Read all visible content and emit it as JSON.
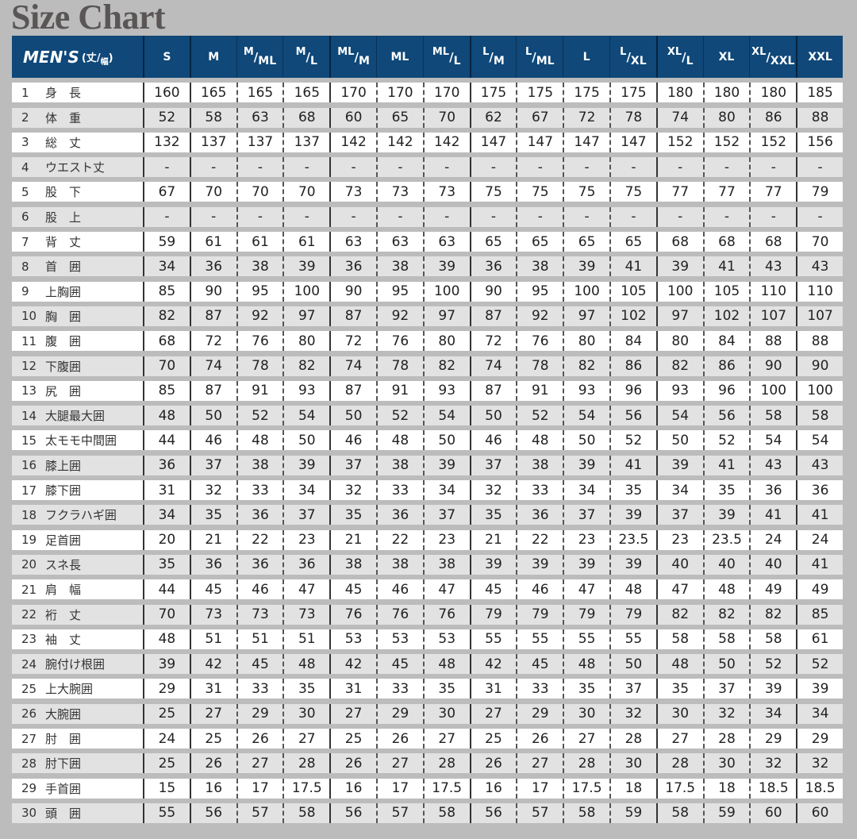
{
  "title": "Size Chart",
  "header": {
    "mens": "MEN'S",
    "unit_top": "丈",
    "unit_bottom": "幅",
    "sizes": [
      {
        "main": "S"
      },
      {
        "main": "M"
      },
      {
        "top": "M",
        "bottom": "ML"
      },
      {
        "top": "M",
        "bottom": "L"
      },
      {
        "top": "ML",
        "bottom": "M"
      },
      {
        "main": "ML"
      },
      {
        "top": "ML",
        "bottom": "L"
      },
      {
        "top": "L",
        "bottom": "M"
      },
      {
        "top": "L",
        "bottom": "ML"
      },
      {
        "main": "L"
      },
      {
        "top": "L",
        "bottom": "XL"
      },
      {
        "top": "XL",
        "bottom": "L"
      },
      {
        "main": "XL"
      },
      {
        "top": "XL",
        "bottom": "XXL"
      },
      {
        "main": "XXL"
      }
    ]
  },
  "rows": [
    {
      "num": "1",
      "name": "身　長",
      "values": [
        "160",
        "165",
        "165",
        "165",
        "170",
        "170",
        "170",
        "175",
        "175",
        "175",
        "175",
        "180",
        "180",
        "180",
        "185"
      ]
    },
    {
      "num": "2",
      "name": "体　重",
      "values": [
        "52",
        "58",
        "63",
        "68",
        "60",
        "65",
        "70",
        "62",
        "67",
        "72",
        "78",
        "74",
        "80",
        "86",
        "88"
      ]
    },
    {
      "num": "3",
      "name": "総　丈",
      "values": [
        "132",
        "137",
        "137",
        "137",
        "142",
        "142",
        "142",
        "147",
        "147",
        "147",
        "147",
        "152",
        "152",
        "152",
        "156"
      ]
    },
    {
      "num": "4",
      "name": "ウエスト丈",
      "values": [
        "-",
        "-",
        "-",
        "-",
        "-",
        "-",
        "-",
        "-",
        "-",
        "-",
        "-",
        "-",
        "-",
        "-",
        "-"
      ]
    },
    {
      "num": "5",
      "name": "股　下",
      "values": [
        "67",
        "70",
        "70",
        "70",
        "73",
        "73",
        "73",
        "75",
        "75",
        "75",
        "75",
        "77",
        "77",
        "77",
        "79"
      ]
    },
    {
      "num": "6",
      "name": "股　上",
      "values": [
        "-",
        "-",
        "-",
        "-",
        "-",
        "-",
        "-",
        "-",
        "-",
        "-",
        "-",
        "-",
        "-",
        "-",
        "-"
      ]
    },
    {
      "num": "7",
      "name": "背　丈",
      "values": [
        "59",
        "61",
        "61",
        "61",
        "63",
        "63",
        "63",
        "65",
        "65",
        "65",
        "65",
        "68",
        "68",
        "68",
        "70"
      ]
    },
    {
      "num": "8",
      "name": "首　囲",
      "values": [
        "34",
        "36",
        "38",
        "39",
        "36",
        "38",
        "39",
        "36",
        "38",
        "39",
        "41",
        "39",
        "41",
        "43",
        "43"
      ]
    },
    {
      "num": "9",
      "name": "上胸囲",
      "values": [
        "85",
        "90",
        "95",
        "100",
        "90",
        "95",
        "100",
        "90",
        "95",
        "100",
        "105",
        "100",
        "105",
        "110",
        "110"
      ]
    },
    {
      "num": "10",
      "name": "胸　囲",
      "values": [
        "82",
        "87",
        "92",
        "97",
        "87",
        "92",
        "97",
        "87",
        "92",
        "97",
        "102",
        "97",
        "102",
        "107",
        "107"
      ]
    },
    {
      "num": "11",
      "name": "腹　囲",
      "values": [
        "68",
        "72",
        "76",
        "80",
        "72",
        "76",
        "80",
        "72",
        "76",
        "80",
        "84",
        "80",
        "84",
        "88",
        "88"
      ]
    },
    {
      "num": "12",
      "name": "下腹囲",
      "values": [
        "70",
        "74",
        "78",
        "82",
        "74",
        "78",
        "82",
        "74",
        "78",
        "82",
        "86",
        "82",
        "86",
        "90",
        "90"
      ]
    },
    {
      "num": "13",
      "name": "尻　囲",
      "values": [
        "85",
        "87",
        "91",
        "93",
        "87",
        "91",
        "93",
        "87",
        "91",
        "93",
        "96",
        "93",
        "96",
        "100",
        "100"
      ]
    },
    {
      "num": "14",
      "name": "大腿最大囲",
      "values": [
        "48",
        "50",
        "52",
        "54",
        "50",
        "52",
        "54",
        "50",
        "52",
        "54",
        "56",
        "54",
        "56",
        "58",
        "58"
      ]
    },
    {
      "num": "15",
      "name": "太モモ中間囲",
      "values": [
        "44",
        "46",
        "48",
        "50",
        "46",
        "48",
        "50",
        "46",
        "48",
        "50",
        "52",
        "50",
        "52",
        "54",
        "54"
      ]
    },
    {
      "num": "16",
      "name": "膝上囲",
      "values": [
        "36",
        "37",
        "38",
        "39",
        "37",
        "38",
        "39",
        "37",
        "38",
        "39",
        "41",
        "39",
        "41",
        "43",
        "43"
      ]
    },
    {
      "num": "17",
      "name": "膝下囲",
      "values": [
        "31",
        "32",
        "33",
        "34",
        "32",
        "33",
        "34",
        "32",
        "33",
        "34",
        "35",
        "34",
        "35",
        "36",
        "36"
      ]
    },
    {
      "num": "18",
      "name": "フクラハギ囲",
      "values": [
        "34",
        "35",
        "36",
        "37",
        "35",
        "36",
        "37",
        "35",
        "36",
        "37",
        "39",
        "37",
        "39",
        "41",
        "41"
      ]
    },
    {
      "num": "19",
      "name": "足首囲",
      "values": [
        "20",
        "21",
        "22",
        "23",
        "21",
        "22",
        "23",
        "21",
        "22",
        "23",
        "23.5",
        "23",
        "23.5",
        "24",
        "24"
      ]
    },
    {
      "num": "20",
      "name": "スネ長",
      "values": [
        "35",
        "36",
        "36",
        "36",
        "38",
        "38",
        "38",
        "39",
        "39",
        "39",
        "39",
        "40",
        "40",
        "40",
        "41"
      ]
    },
    {
      "num": "21",
      "name": "肩　幅",
      "values": [
        "44",
        "45",
        "46",
        "47",
        "45",
        "46",
        "47",
        "45",
        "46",
        "47",
        "48",
        "47",
        "48",
        "49",
        "49"
      ]
    },
    {
      "num": "22",
      "name": "裄　丈",
      "values": [
        "70",
        "73",
        "73",
        "73",
        "76",
        "76",
        "76",
        "79",
        "79",
        "79",
        "79",
        "82",
        "82",
        "82",
        "85"
      ]
    },
    {
      "num": "23",
      "name": "袖　丈",
      "values": [
        "48",
        "51",
        "51",
        "51",
        "53",
        "53",
        "53",
        "55",
        "55",
        "55",
        "55",
        "58",
        "58",
        "58",
        "61"
      ]
    },
    {
      "num": "24",
      "name": "腕付け根囲",
      "values": [
        "39",
        "42",
        "45",
        "48",
        "42",
        "45",
        "48",
        "42",
        "45",
        "48",
        "50",
        "48",
        "50",
        "52",
        "52"
      ]
    },
    {
      "num": "25",
      "name": "上大腕囲",
      "values": [
        "29",
        "31",
        "33",
        "35",
        "31",
        "33",
        "35",
        "31",
        "33",
        "35",
        "37",
        "35",
        "37",
        "39",
        "39"
      ]
    },
    {
      "num": "26",
      "name": "大腕囲",
      "values": [
        "25",
        "27",
        "29",
        "30",
        "27",
        "29",
        "30",
        "27",
        "29",
        "30",
        "32",
        "30",
        "32",
        "34",
        "34"
      ]
    },
    {
      "num": "27",
      "name": "肘　囲",
      "values": [
        "24",
        "25",
        "26",
        "27",
        "25",
        "26",
        "27",
        "25",
        "26",
        "27",
        "28",
        "27",
        "28",
        "29",
        "29"
      ]
    },
    {
      "num": "28",
      "name": "肘下囲",
      "values": [
        "25",
        "26",
        "27",
        "28",
        "26",
        "27",
        "28",
        "26",
        "27",
        "28",
        "30",
        "28",
        "30",
        "32",
        "32"
      ]
    },
    {
      "num": "29",
      "name": "手首囲",
      "values": [
        "15",
        "16",
        "17",
        "17.5",
        "16",
        "17",
        "17.5",
        "16",
        "17",
        "17.5",
        "18",
        "17.5",
        "18",
        "18.5",
        "18.5"
      ]
    },
    {
      "num": "30",
      "name": "頭　囲",
      "values": [
        "55",
        "56",
        "57",
        "58",
        "56",
        "57",
        "58",
        "56",
        "57",
        "58",
        "59",
        "58",
        "59",
        "60",
        "60"
      ]
    }
  ],
  "colors": {
    "header_bg": "#0f4879",
    "page_bg": "#bcbcbc",
    "row_alt": "#e2e2e2"
  }
}
